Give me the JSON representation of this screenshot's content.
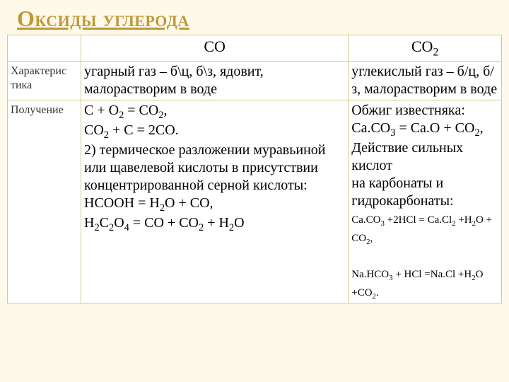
{
  "title": "Оксиды углерода",
  "table": {
    "head": {
      "c1": "",
      "c2_plain": "CO",
      "c3_plain": "CO",
      "c3_sub": "2"
    },
    "row1": {
      "label": "Характерис тика",
      "co": " угарный газ – б\\ц, б\\з, ядовит, малорастворим в воде",
      "co2": "углекислый газ – б/ц, б/з, малорастворим в воде"
    },
    "row2": {
      "label": "Получение",
      "co_l1a": "C + O",
      "co_l1b": " = CO",
      "co_l1c": ",",
      "co_l2a": "CO",
      "co_l2b": " + C = 2CO.",
      "co_l3": "2) термическое разложении муравьиной или щавелевой кислоты в присутствии концентрированной серной кислоты:",
      "co_l4a": "HCOOH = H",
      "co_l4b": "O + CO,",
      "co_l5a": "H",
      "co_l5b": "C",
      "co_l5c": "O",
      "co_l5d": " = CO + CO",
      "co_l5e": " + H",
      "co_l5f": "O",
      "co2_l1": "Обжиг известняка:",
      "co2_l2a": "Ca.CO",
      "co2_l2b": " = Ca.O + CO",
      "co2_l2c": ",",
      "co2_l3": "Действие сильных кислот",
      "co2_l4": " на карбонаты и гидрокарбонаты:",
      "co2_l5a": "Ca.CO",
      "co2_l5b": " +2HCl = Ca.Cl",
      "co2_l5c": " +H",
      "co2_l5d": "O + CO",
      "co2_l5e": ",",
      "co2_l6a": "Na.HCO",
      "co2_l6b": " + HCl =Na.Cl +H",
      "co2_l6c": "O +CO",
      "co2_l6d": "."
    }
  },
  "subs": {
    "two": "2",
    "three": "3",
    "four": "4"
  }
}
